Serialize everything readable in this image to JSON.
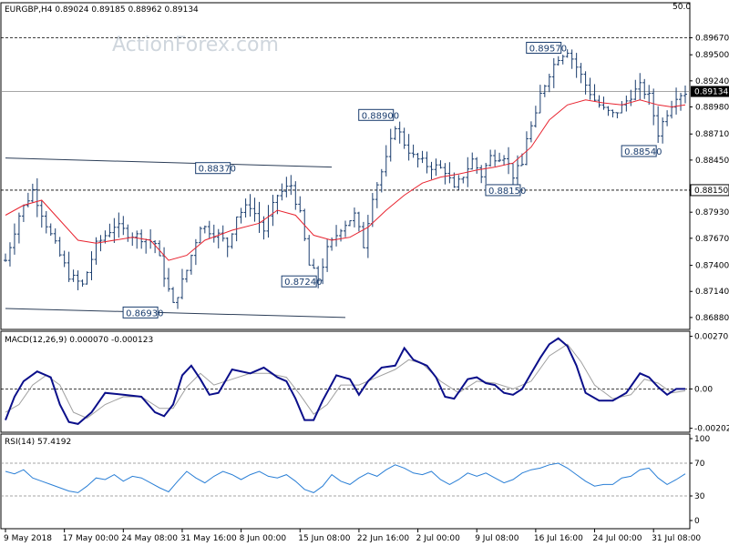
{
  "chart_data": {
    "type": "ohlc",
    "symbol_header": "EURGBP,H4  0.89024 0.89185 0.88962 0.89134",
    "watermark": "ActionForex.com",
    "price_panel": {
      "ylim": [
        0.8677,
        0.9001
      ],
      "y_tick_labels": [
        "0.89670",
        "0.89500",
        "0.89240",
        "0.88980",
        "0.88710",
        "0.88450",
        "0.88150",
        "0.87930",
        "0.87670",
        "0.87400",
        "0.87140",
        "0.86880"
      ],
      "current_price": "0.89134",
      "current_price_color": "#000000",
      "level_50_label": "50.0",
      "level_50": 0.8967,
      "support_level": 0.8815,
      "support_label": "0.88150",
      "moving_average_color": "#e8232f",
      "bar_color": "#1a3d6e",
      "price_path": [
        [
          0,
          0.8745
        ],
        [
          3,
          0.879
        ],
        [
          6,
          0.8815
        ],
        [
          10,
          0.877
        ],
        [
          14,
          0.873
        ],
        [
          17,
          0.872
        ],
        [
          20,
          0.876
        ],
        [
          24,
          0.878
        ],
        [
          27,
          0.8772
        ],
        [
          30,
          0.8768
        ],
        [
          33,
          0.8762
        ],
        [
          35,
          0.873
        ],
        [
          37,
          0.87
        ],
        [
          40,
          0.8735
        ],
        [
          43,
          0.878
        ],
        [
          47,
          0.877
        ],
        [
          49,
          0.876
        ],
        [
          51,
          0.879
        ],
        [
          54,
          0.88
        ],
        [
          57,
          0.8775
        ],
        [
          60,
          0.881
        ],
        [
          63,
          0.882
        ],
        [
          65,
          0.879
        ],
        [
          67,
          0.874
        ],
        [
          69,
          0.8726
        ],
        [
          71,
          0.8755
        ],
        [
          74,
          0.8778
        ],
        [
          77,
          0.879
        ],
        [
          79,
          0.876
        ],
        [
          81,
          0.881
        ],
        [
          84,
          0.8845
        ],
        [
          86,
          0.888
        ],
        [
          88,
          0.8862
        ],
        [
          90,
          0.8848
        ],
        [
          93,
          0.884
        ],
        [
          95,
          0.8838
        ],
        [
          97,
          0.8835
        ],
        [
          99,
          0.8815
        ],
        [
          101,
          0.883
        ],
        [
          103,
          0.8845
        ],
        [
          105,
          0.883
        ],
        [
          107,
          0.8848
        ],
        [
          110,
          0.885
        ],
        [
          112,
          0.883
        ],
        [
          114,
          0.884
        ],
        [
          115,
          0.8868
        ],
        [
          117,
          0.8888
        ],
        [
          118,
          0.891
        ],
        [
          120,
          0.8932
        ],
        [
          122,
          0.8948
        ],
        [
          124,
          0.8955
        ],
        [
          126,
          0.8938
        ],
        [
          128,
          0.892
        ],
        [
          130,
          0.8905
        ],
        [
          132,
          0.8895
        ],
        [
          134,
          0.889
        ],
        [
          136,
          0.8898
        ],
        [
          138,
          0.891
        ],
        [
          140,
          0.8918
        ],
        [
          142,
          0.8908
        ],
        [
          144,
          0.8872
        ],
        [
          146,
          0.8893
        ],
        [
          148,
          0.891
        ],
        [
          150,
          0.8913
        ]
      ],
      "moving_average": [
        [
          0,
          0.879
        ],
        [
          4,
          0.88
        ],
        [
          8,
          0.8805
        ],
        [
          12,
          0.8785
        ],
        [
          16,
          0.8765
        ],
        [
          20,
          0.8762
        ],
        [
          28,
          0.8768
        ],
        [
          32,
          0.8765
        ],
        [
          36,
          0.8745
        ],
        [
          40,
          0.875
        ],
        [
          44,
          0.8765
        ],
        [
          50,
          0.8775
        ],
        [
          56,
          0.8782
        ],
        [
          60,
          0.8795
        ],
        [
          64,
          0.879
        ],
        [
          68,
          0.877
        ],
        [
          72,
          0.8765
        ],
        [
          76,
          0.8768
        ],
        [
          80,
          0.8778
        ],
        [
          84,
          0.8795
        ],
        [
          88,
          0.881
        ],
        [
          92,
          0.8822
        ],
        [
          96,
          0.8828
        ],
        [
          100,
          0.8831
        ],
        [
          104,
          0.8835
        ],
        [
          108,
          0.8838
        ],
        [
          112,
          0.8842
        ],
        [
          116,
          0.8858
        ],
        [
          120,
          0.8885
        ],
        [
          124,
          0.89
        ],
        [
          128,
          0.8905
        ],
        [
          132,
          0.8902
        ],
        [
          136,
          0.89
        ],
        [
          140,
          0.8905
        ],
        [
          144,
          0.89
        ],
        [
          147,
          0.8898
        ],
        [
          150,
          0.89
        ]
      ],
      "labels": [
        {
          "text": "0.89570",
          "x": 123,
          "y": 0.8957,
          "align": "right"
        },
        {
          "text": "0.88900",
          "x": 86,
          "y": 0.889,
          "align": "right"
        },
        {
          "text": "0.88370",
          "x": 50,
          "y": 0.8837,
          "align": "right"
        },
        {
          "text": "0.88540",
          "x": 144,
          "y": 0.8854,
          "align": "right"
        },
        {
          "text": "0.88150",
          "x": 114,
          "y": 0.8815,
          "align": "right"
        },
        {
          "text": "0.87240",
          "x": 69,
          "y": 0.8724,
          "align": "right"
        },
        {
          "text": "0.86930",
          "x": 34,
          "y": 0.8693,
          "align": "right"
        }
      ],
      "channel_upper": [
        [
          0,
          0.8847
        ],
        [
          72,
          0.8838
        ]
      ],
      "channel_lower": [
        [
          0,
          0.8697
        ],
        [
          75,
          0.8688
        ]
      ]
    },
    "macd_panel": {
      "title": "MACD(12,26,9) 0.000070 -0.000123",
      "ylim": [
        -0.00218,
        0.00292
      ],
      "y_tick_labels": [
        "0.002705",
        "0.00",
        "-0.002023"
      ],
      "y_tick_values": [
        0.002705,
        0.0,
        -0.002023
      ],
      "macd_color": "#0b0f8a",
      "signal_color": "#a0a0a0",
      "macd": [
        [
          0,
          -0.0016
        ],
        [
          2,
          -0.0004
        ],
        [
          4,
          0.0004
        ],
        [
          7,
          0.0009
        ],
        [
          10,
          0.0006
        ],
        [
          12,
          -0.0008
        ],
        [
          14,
          -0.0017
        ],
        [
          16,
          -0.0018
        ],
        [
          19,
          -0.0012
        ],
        [
          22,
          -0.0002
        ],
        [
          26,
          -0.0003
        ],
        [
          30,
          -0.0004
        ],
        [
          33,
          -0.0012
        ],
        [
          35,
          -0.0014
        ],
        [
          37,
          -0.0008
        ],
        [
          39,
          0.0007
        ],
        [
          41,
          0.0012
        ],
        [
          43,
          0.0005
        ],
        [
          45,
          -0.0003
        ],
        [
          47,
          -0.0002
        ],
        [
          50,
          0.001
        ],
        [
          54,
          0.0008
        ],
        [
          57,
          0.0011
        ],
        [
          60,
          0.0006
        ],
        [
          62,
          0.0004
        ],
        [
          64,
          -0.0005
        ],
        [
          66,
          -0.0016
        ],
        [
          68,
          -0.0016
        ],
        [
          70,
          -0.0006
        ],
        [
          73,
          0.0007
        ],
        [
          76,
          0.0005
        ],
        [
          78,
          -0.0003
        ],
        [
          80,
          0.0004
        ],
        [
          83,
          0.0011
        ],
        [
          86,
          0.0012
        ],
        [
          88,
          0.0021
        ],
        [
          90,
          0.0015
        ],
        [
          93,
          0.0012
        ],
        [
          95,
          0.0006
        ],
        [
          97,
          -0.0004
        ],
        [
          99,
          -0.0005
        ],
        [
          102,
          0.0005
        ],
        [
          104,
          0.0006
        ],
        [
          106,
          0.0003
        ],
        [
          108,
          0.0002
        ],
        [
          110,
          -0.0002
        ],
        [
          112,
          -0.0003
        ],
        [
          114,
          0.0
        ],
        [
          116,
          0.0008
        ],
        [
          118,
          0.0016
        ],
        [
          120,
          0.0023
        ],
        [
          122,
          0.0026
        ],
        [
          124,
          0.0022
        ],
        [
          126,
          0.0012
        ],
        [
          128,
          -0.0002
        ],
        [
          131,
          -0.0006
        ],
        [
          134,
          -0.0006
        ],
        [
          137,
          -0.0002
        ],
        [
          140,
          0.0008
        ],
        [
          142,
          0.0006
        ],
        [
          144,
          0.0001
        ],
        [
          146,
          -0.0003
        ],
        [
          148,
          0.0
        ],
        [
          150,
          0.0
        ]
      ],
      "signal": [
        [
          0,
          -0.0012
        ],
        [
          3,
          -0.0008
        ],
        [
          6,
          0.0002
        ],
        [
          9,
          0.0007
        ],
        [
          12,
          0.0002
        ],
        [
          15,
          -0.0012
        ],
        [
          18,
          -0.0015
        ],
        [
          22,
          -0.0008
        ],
        [
          26,
          -0.0004
        ],
        [
          30,
          -0.0004
        ],
        [
          34,
          -0.001
        ],
        [
          37,
          -0.001
        ],
        [
          40,
          0.0001
        ],
        [
          43,
          0.0008
        ],
        [
          46,
          0.0002
        ],
        [
          50,
          0.0005
        ],
        [
          54,
          0.0008
        ],
        [
          58,
          0.0008
        ],
        [
          62,
          0.0006
        ],
        [
          65,
          -0.0003
        ],
        [
          68,
          -0.0013
        ],
        [
          71,
          -0.0008
        ],
        [
          74,
          0.0002
        ],
        [
          78,
          0.0002
        ],
        [
          82,
          0.0006
        ],
        [
          86,
          0.001
        ],
        [
          89,
          0.0015
        ],
        [
          92,
          0.0013
        ],
        [
          96,
          0.0004
        ],
        [
          100,
          -0.0002
        ],
        [
          104,
          0.0004
        ],
        [
          108,
          0.0003
        ],
        [
          112,
          0.0
        ],
        [
          116,
          0.0004
        ],
        [
          120,
          0.0017
        ],
        [
          124,
          0.0023
        ],
        [
          127,
          0.0014
        ],
        [
          130,
          0.0002
        ],
        [
          134,
          -0.0005
        ],
        [
          138,
          -0.0003
        ],
        [
          141,
          0.0005
        ],
        [
          144,
          0.0003
        ],
        [
          147,
          -0.0002
        ],
        [
          150,
          -0.0001
        ]
      ]
    },
    "rsi_panel": {
      "title": "RSI(14) 57.4192",
      "ylim": [
        0,
        100
      ],
      "y_tick_labels": [
        "100",
        "70",
        "30",
        "0"
      ],
      "y_tick_values": [
        100,
        70,
        30,
        0
      ],
      "reference_levels": [
        70,
        30
      ],
      "rsi_color": "#2a7fd6",
      "rsi": [
        [
          0,
          60
        ],
        [
          2,
          57
        ],
        [
          4,
          62
        ],
        [
          6,
          52
        ],
        [
          8,
          48
        ],
        [
          10,
          44
        ],
        [
          12,
          40
        ],
        [
          14,
          36
        ],
        [
          16,
          34
        ],
        [
          18,
          42
        ],
        [
          20,
          52
        ],
        [
          22,
          50
        ],
        [
          24,
          56
        ],
        [
          26,
          48
        ],
        [
          28,
          54
        ],
        [
          30,
          52
        ],
        [
          32,
          46
        ],
        [
          34,
          40
        ],
        [
          36,
          35
        ],
        [
          38,
          48
        ],
        [
          40,
          60
        ],
        [
          42,
          52
        ],
        [
          44,
          46
        ],
        [
          46,
          54
        ],
        [
          48,
          60
        ],
        [
          50,
          56
        ],
        [
          52,
          50
        ],
        [
          54,
          56
        ],
        [
          56,
          60
        ],
        [
          58,
          54
        ],
        [
          60,
          52
        ],
        [
          62,
          56
        ],
        [
          64,
          48
        ],
        [
          66,
          38
        ],
        [
          68,
          34
        ],
        [
          70,
          42
        ],
        [
          72,
          56
        ],
        [
          74,
          48
        ],
        [
          76,
          44
        ],
        [
          78,
          52
        ],
        [
          80,
          58
        ],
        [
          82,
          54
        ],
        [
          84,
          62
        ],
        [
          86,
          68
        ],
        [
          88,
          64
        ],
        [
          90,
          58
        ],
        [
          92,
          56
        ],
        [
          94,
          60
        ],
        [
          96,
          50
        ],
        [
          98,
          44
        ],
        [
          100,
          50
        ],
        [
          102,
          58
        ],
        [
          104,
          54
        ],
        [
          106,
          58
        ],
        [
          108,
          52
        ],
        [
          110,
          46
        ],
        [
          112,
          50
        ],
        [
          114,
          58
        ],
        [
          116,
          62
        ],
        [
          118,
          64
        ],
        [
          120,
          68
        ],
        [
          122,
          70
        ],
        [
          124,
          64
        ],
        [
          126,
          56
        ],
        [
          128,
          48
        ],
        [
          130,
          42
        ],
        [
          132,
          44
        ],
        [
          134,
          44
        ],
        [
          136,
          52
        ],
        [
          138,
          54
        ],
        [
          140,
          62
        ],
        [
          142,
          64
        ],
        [
          144,
          52
        ],
        [
          146,
          44
        ],
        [
          148,
          50
        ],
        [
          150,
          57
        ]
      ]
    },
    "x_axis": {
      "tick_labels": [
        "9 May 2018",
        "17 May 00:00",
        "24 May 08:00",
        "31 May 16:00",
        "8 Jun 00:00",
        "15 Jun 08:00",
        "22 Jun 16:00",
        "2 Jul 00:00",
        "9 Jul 08:00",
        "16 Jul 16:00",
        "24 Jul 00:00",
        "31 Jul 08:00"
      ],
      "tick_positions": [
        0,
        13,
        26,
        39,
        52,
        65,
        78,
        91,
        104,
        117,
        130,
        143
      ]
    }
  }
}
